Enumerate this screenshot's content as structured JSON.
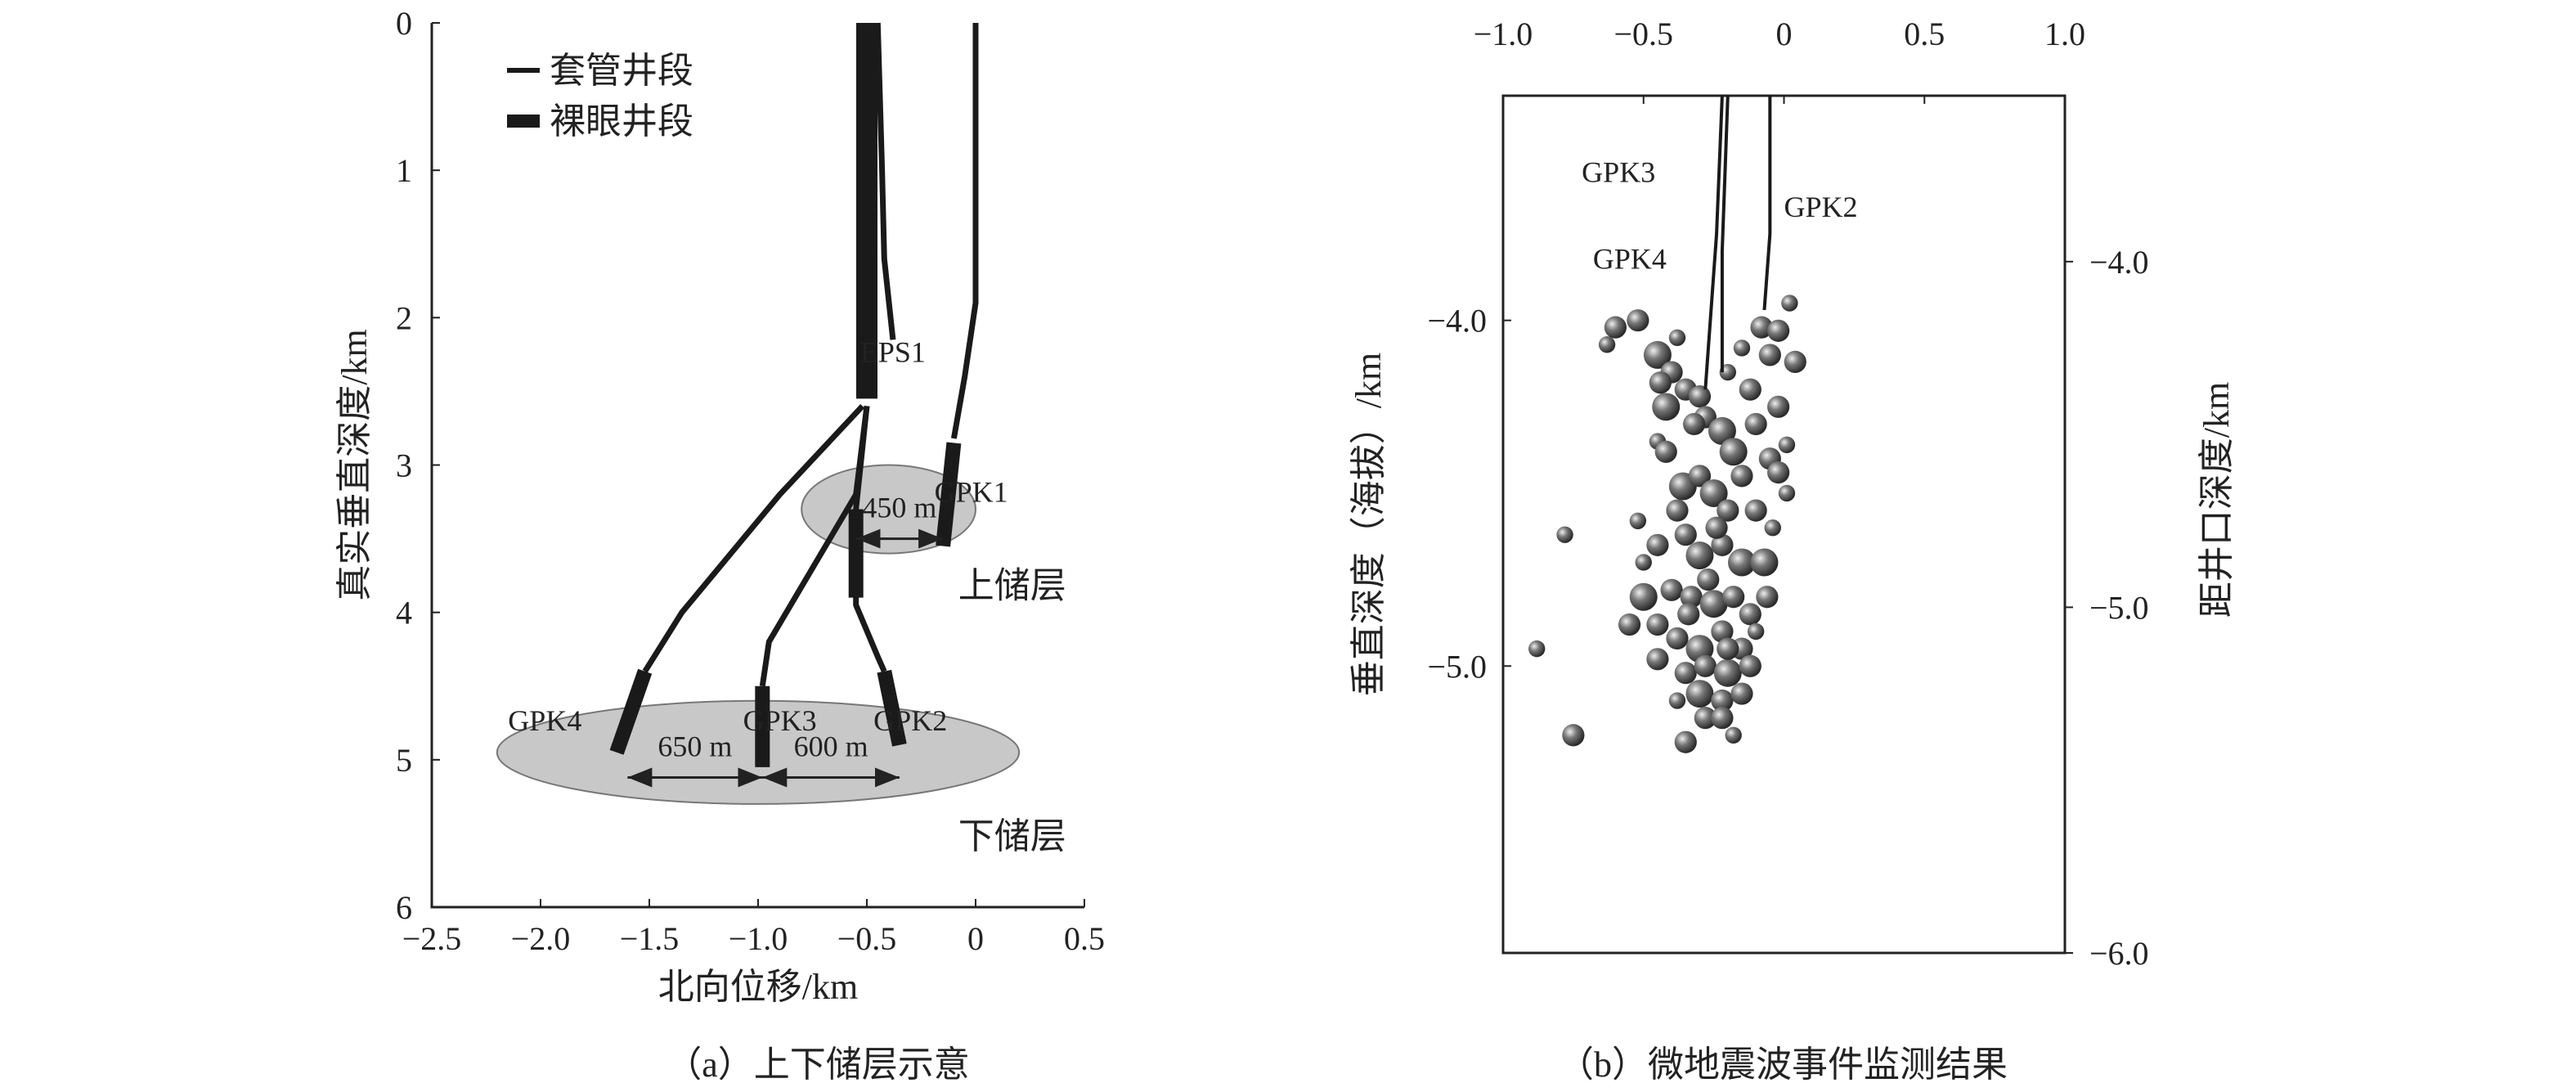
{
  "chart_data": [
    {
      "type": "line",
      "caption": "（a）上下储层示意",
      "xlabel": "北向位移/km",
      "ylabel": "真实垂直深度/km",
      "xlim": [
        -2.5,
        0.5
      ],
      "ylim": [
        0,
        6
      ],
      "xticks": [
        "−2.5",
        "−2.0",
        "−1.5",
        "−1.0",
        "−0.5",
        "0",
        "0.5"
      ],
      "xtick_values": [
        -2.5,
        -2.0,
        -1.5,
        -1.0,
        -0.5,
        0,
        0.5
      ],
      "yticks": [
        "0",
        "1",
        "2",
        "3",
        "4",
        "5",
        "6"
      ],
      "ytick_values": [
        0,
        1,
        2,
        3,
        4,
        5,
        6
      ],
      "legend": [
        {
          "label": "套管井段",
          "style": "thin"
        },
        {
          "label": "裸眼井段",
          "style": "thick"
        }
      ],
      "reservoirs": [
        {
          "label": "上储层",
          "center": [
            -0.4,
            3.3
          ],
          "rx": 0.4,
          "ry": 0.3
        },
        {
          "label": "下储层",
          "center": [
            -1.0,
            4.95
          ],
          "rx": 1.2,
          "ry": 0.35
        }
      ],
      "spacings": [
        {
          "label": "450 m",
          "depth": 3.5,
          "from": -0.55,
          "to": -0.15
        },
        {
          "label": "650 m",
          "depth": 5.12,
          "from": -1.6,
          "to": -0.98
        },
        {
          "label": "600 m",
          "depth": 5.12,
          "from": -0.98,
          "to": -0.35
        }
      ],
      "wells": [
        {
          "name": "trunk",
          "label": "",
          "thin": [],
          "thick": [
            [
              -0.5,
              0
            ],
            [
              -0.5,
              2.55
            ]
          ]
        },
        {
          "name": "EPS1",
          "label": "EPS1",
          "label_at": [
            -0.38,
            2.3
          ],
          "thin": [
            [
              -0.45,
              0
            ],
            [
              -0.43,
              1.0
            ],
            [
              -0.42,
              1.6
            ],
            [
              -0.38,
              2.15
            ]
          ],
          "thick": []
        },
        {
          "name": "GPK1",
          "label": "GPK1",
          "label_at": [
            -0.02,
            3.25
          ],
          "thin": [
            [
              0,
              0
            ],
            [
              0,
              1.9
            ],
            [
              -0.05,
              2.4
            ],
            [
              -0.1,
              2.82
            ]
          ],
          "thick": [
            [
              -0.1,
              2.85
            ],
            [
              -0.15,
              3.55
            ]
          ]
        },
        {
          "name": "GPK4",
          "label": "GPK4",
          "label_at": [
            -1.98,
            4.8
          ],
          "thin": [
            [
              -0.52,
              2.6
            ],
            [
              -0.9,
              3.2
            ],
            [
              -1.35,
              4.0
            ],
            [
              -1.52,
              4.4
            ]
          ],
          "thick": [
            [
              -1.52,
              4.4
            ],
            [
              -1.65,
              4.95
            ]
          ]
        },
        {
          "name": "GPK3",
          "label": "GPK3",
          "label_at": [
            -0.9,
            4.8
          ],
          "thin": [
            [
              -0.5,
              2.6
            ],
            [
              -0.55,
              3.2
            ],
            [
              -0.75,
              3.7
            ],
            [
              -0.95,
              4.2
            ],
            [
              -0.98,
              4.5
            ]
          ],
          "thick": [
            [
              -0.98,
              4.5
            ],
            [
              -0.98,
              5.05
            ]
          ]
        },
        {
          "name": "GPK2",
          "label": "GPK2",
          "label_at": [
            -0.3,
            4.8
          ],
          "thin": [
            [
              -0.5,
              2.6
            ],
            [
              -0.55,
              3.3
            ],
            [
              -0.55,
              3.95
            ],
            [
              -0.45,
              4.3
            ],
            [
              -0.42,
              4.4
            ]
          ],
          "thick": [
            [
              -0.55,
              3.3
            ],
            [
              -0.55,
              3.9
            ],
            [
              -0.42,
              4.4
            ],
            [
              -0.35,
              4.9
            ]
          ]
        }
      ]
    },
    {
      "type": "scatter",
      "caption": "（b）微地震波事件监测结果",
      "ylabel": "垂直深度（海拔）/km",
      "y2label": "距井口深度/km",
      "xlim": [
        -1.0,
        1.0
      ],
      "ylim": [
        -5.83,
        -3.35
      ],
      "y2lim": [
        -6.0,
        -3.52
      ],
      "xticks": [
        "−1.0",
        "−0.5",
        "0",
        "0.5",
        "1.0"
      ],
      "xtick_values": [
        -1,
        -0.5,
        0,
        0.5,
        1
      ],
      "yticks": [
        "−4.0",
        "−5.0"
      ],
      "ytick_values": [
        -4,
        -5
      ],
      "y2ticks": [
        "−4.0",
        "−5.0",
        "−6.0"
      ],
      "y2tick_values": [
        -4,
        -5,
        -6
      ],
      "wells": [
        {
          "name": "GPK3",
          "label": "GPK3",
          "label_at": [
            -0.72,
            -3.6
          ],
          "path": [
            [
              -0.22,
              -3.35
            ],
            [
              -0.24,
              -3.75
            ],
            [
              -0.28,
              -4.2
            ]
          ]
        },
        {
          "name": "GPK4",
          "label": "GPK4",
          "label_at": [
            -0.68,
            -3.85
          ],
          "path": [
            [
              -0.2,
              -3.35
            ],
            [
              -0.22,
              -3.8
            ],
            [
              -0.22,
              -4.15
            ]
          ]
        },
        {
          "name": "GPK2",
          "label": "GPK2",
          "label_at": [
            0.0,
            -3.7
          ],
          "path": [
            [
              -0.05,
              -3.35
            ],
            [
              -0.05,
              -3.75
            ],
            [
              -0.07,
              -3.97
            ]
          ]
        }
      ],
      "events": [
        [
          -0.88,
          -4.95,
          3
        ],
        [
          -0.78,
          -4.62,
          3
        ],
        [
          -0.75,
          -5.2,
          4
        ],
        [
          -0.63,
          -4.07,
          3
        ],
        [
          -0.6,
          -4.02,
          4
        ],
        [
          -0.52,
          -4.0,
          4
        ],
        [
          -0.38,
          -4.05,
          3
        ],
        [
          -0.35,
          -5.22,
          4
        ],
        [
          -0.45,
          -4.1,
          5
        ],
        [
          -0.4,
          -4.15,
          4
        ],
        [
          -0.44,
          -4.18,
          4
        ],
        [
          -0.42,
          -4.25,
          5
        ],
        [
          -0.35,
          -4.2,
          4
        ],
        [
          -0.3,
          -4.22,
          4
        ],
        [
          -0.2,
          -4.15,
          3
        ],
        [
          -0.15,
          -4.08,
          3
        ],
        [
          -0.08,
          -4.02,
          4
        ],
        [
          -0.02,
          -4.03,
          4
        ],
        [
          0.02,
          -3.95,
          3
        ],
        [
          0.04,
          -4.12,
          4
        ],
        [
          -0.05,
          -4.1,
          4
        ],
        [
          -0.12,
          -4.2,
          4
        ],
        [
          -0.02,
          -4.25,
          4
        ],
        [
          -0.1,
          -4.3,
          4
        ],
        [
          -0.45,
          -4.35,
          3
        ],
        [
          -0.42,
          -4.38,
          4
        ],
        [
          -0.28,
          -4.28,
          4
        ],
        [
          -0.22,
          -4.32,
          5
        ],
        [
          -0.18,
          -4.38,
          5
        ],
        [
          -0.15,
          -4.45,
          4
        ],
        [
          -0.05,
          -4.4,
          4
        ],
        [
          -0.02,
          -4.44,
          4
        ],
        [
          0.01,
          -4.36,
          3
        ],
        [
          0.01,
          -4.5,
          3
        ],
        [
          -0.36,
          -4.48,
          5
        ],
        [
          -0.3,
          -4.45,
          4
        ],
        [
          -0.25,
          -4.5,
          5
        ],
        [
          -0.2,
          -4.55,
          4
        ],
        [
          -0.1,
          -4.55,
          4
        ],
        [
          -0.04,
          -4.6,
          3
        ],
        [
          -0.52,
          -4.58,
          3
        ],
        [
          -0.45,
          -4.65,
          4
        ],
        [
          -0.5,
          -4.7,
          3
        ],
        [
          -0.35,
          -4.62,
          4
        ],
        [
          -0.3,
          -4.68,
          5
        ],
        [
          -0.22,
          -4.65,
          4
        ],
        [
          -0.15,
          -4.7,
          5
        ],
        [
          -0.07,
          -4.7,
          5
        ],
        [
          -0.5,
          -4.8,
          5
        ],
        [
          -0.4,
          -4.78,
          4
        ],
        [
          -0.33,
          -4.8,
          4
        ],
        [
          -0.25,
          -4.82,
          5
        ],
        [
          -0.18,
          -4.8,
          4
        ],
        [
          -0.12,
          -4.85,
          4
        ],
        [
          -0.06,
          -4.8,
          4
        ],
        [
          -0.1,
          -4.9,
          3
        ],
        [
          -0.55,
          -4.88,
          4
        ],
        [
          -0.45,
          -4.88,
          4
        ],
        [
          -0.38,
          -4.92,
          4
        ],
        [
          -0.3,
          -4.95,
          5
        ],
        [
          -0.22,
          -4.9,
          4
        ],
        [
          -0.15,
          -4.95,
          4
        ],
        [
          -0.45,
          -4.98,
          4
        ],
        [
          -0.35,
          -5.02,
          4
        ],
        [
          -0.28,
          -5.0,
          4
        ],
        [
          -0.2,
          -5.02,
          5
        ],
        [
          -0.12,
          -5.0,
          4
        ],
        [
          -0.3,
          -5.08,
          5
        ],
        [
          -0.22,
          -5.1,
          4
        ],
        [
          -0.15,
          -5.08,
          4
        ],
        [
          -0.38,
          -5.1,
          3
        ],
        [
          -0.28,
          -5.15,
          4
        ],
        [
          -0.22,
          -5.15,
          4
        ],
        [
          -0.18,
          -5.2,
          3
        ],
        [
          -0.32,
          -4.3,
          4
        ],
        [
          -0.38,
          -4.55,
          4
        ],
        [
          -0.24,
          -4.6,
          4
        ],
        [
          -0.27,
          -4.75,
          4
        ],
        [
          -0.2,
          -4.95,
          4
        ],
        [
          -0.34,
          -4.85,
          4
        ]
      ]
    }
  ]
}
